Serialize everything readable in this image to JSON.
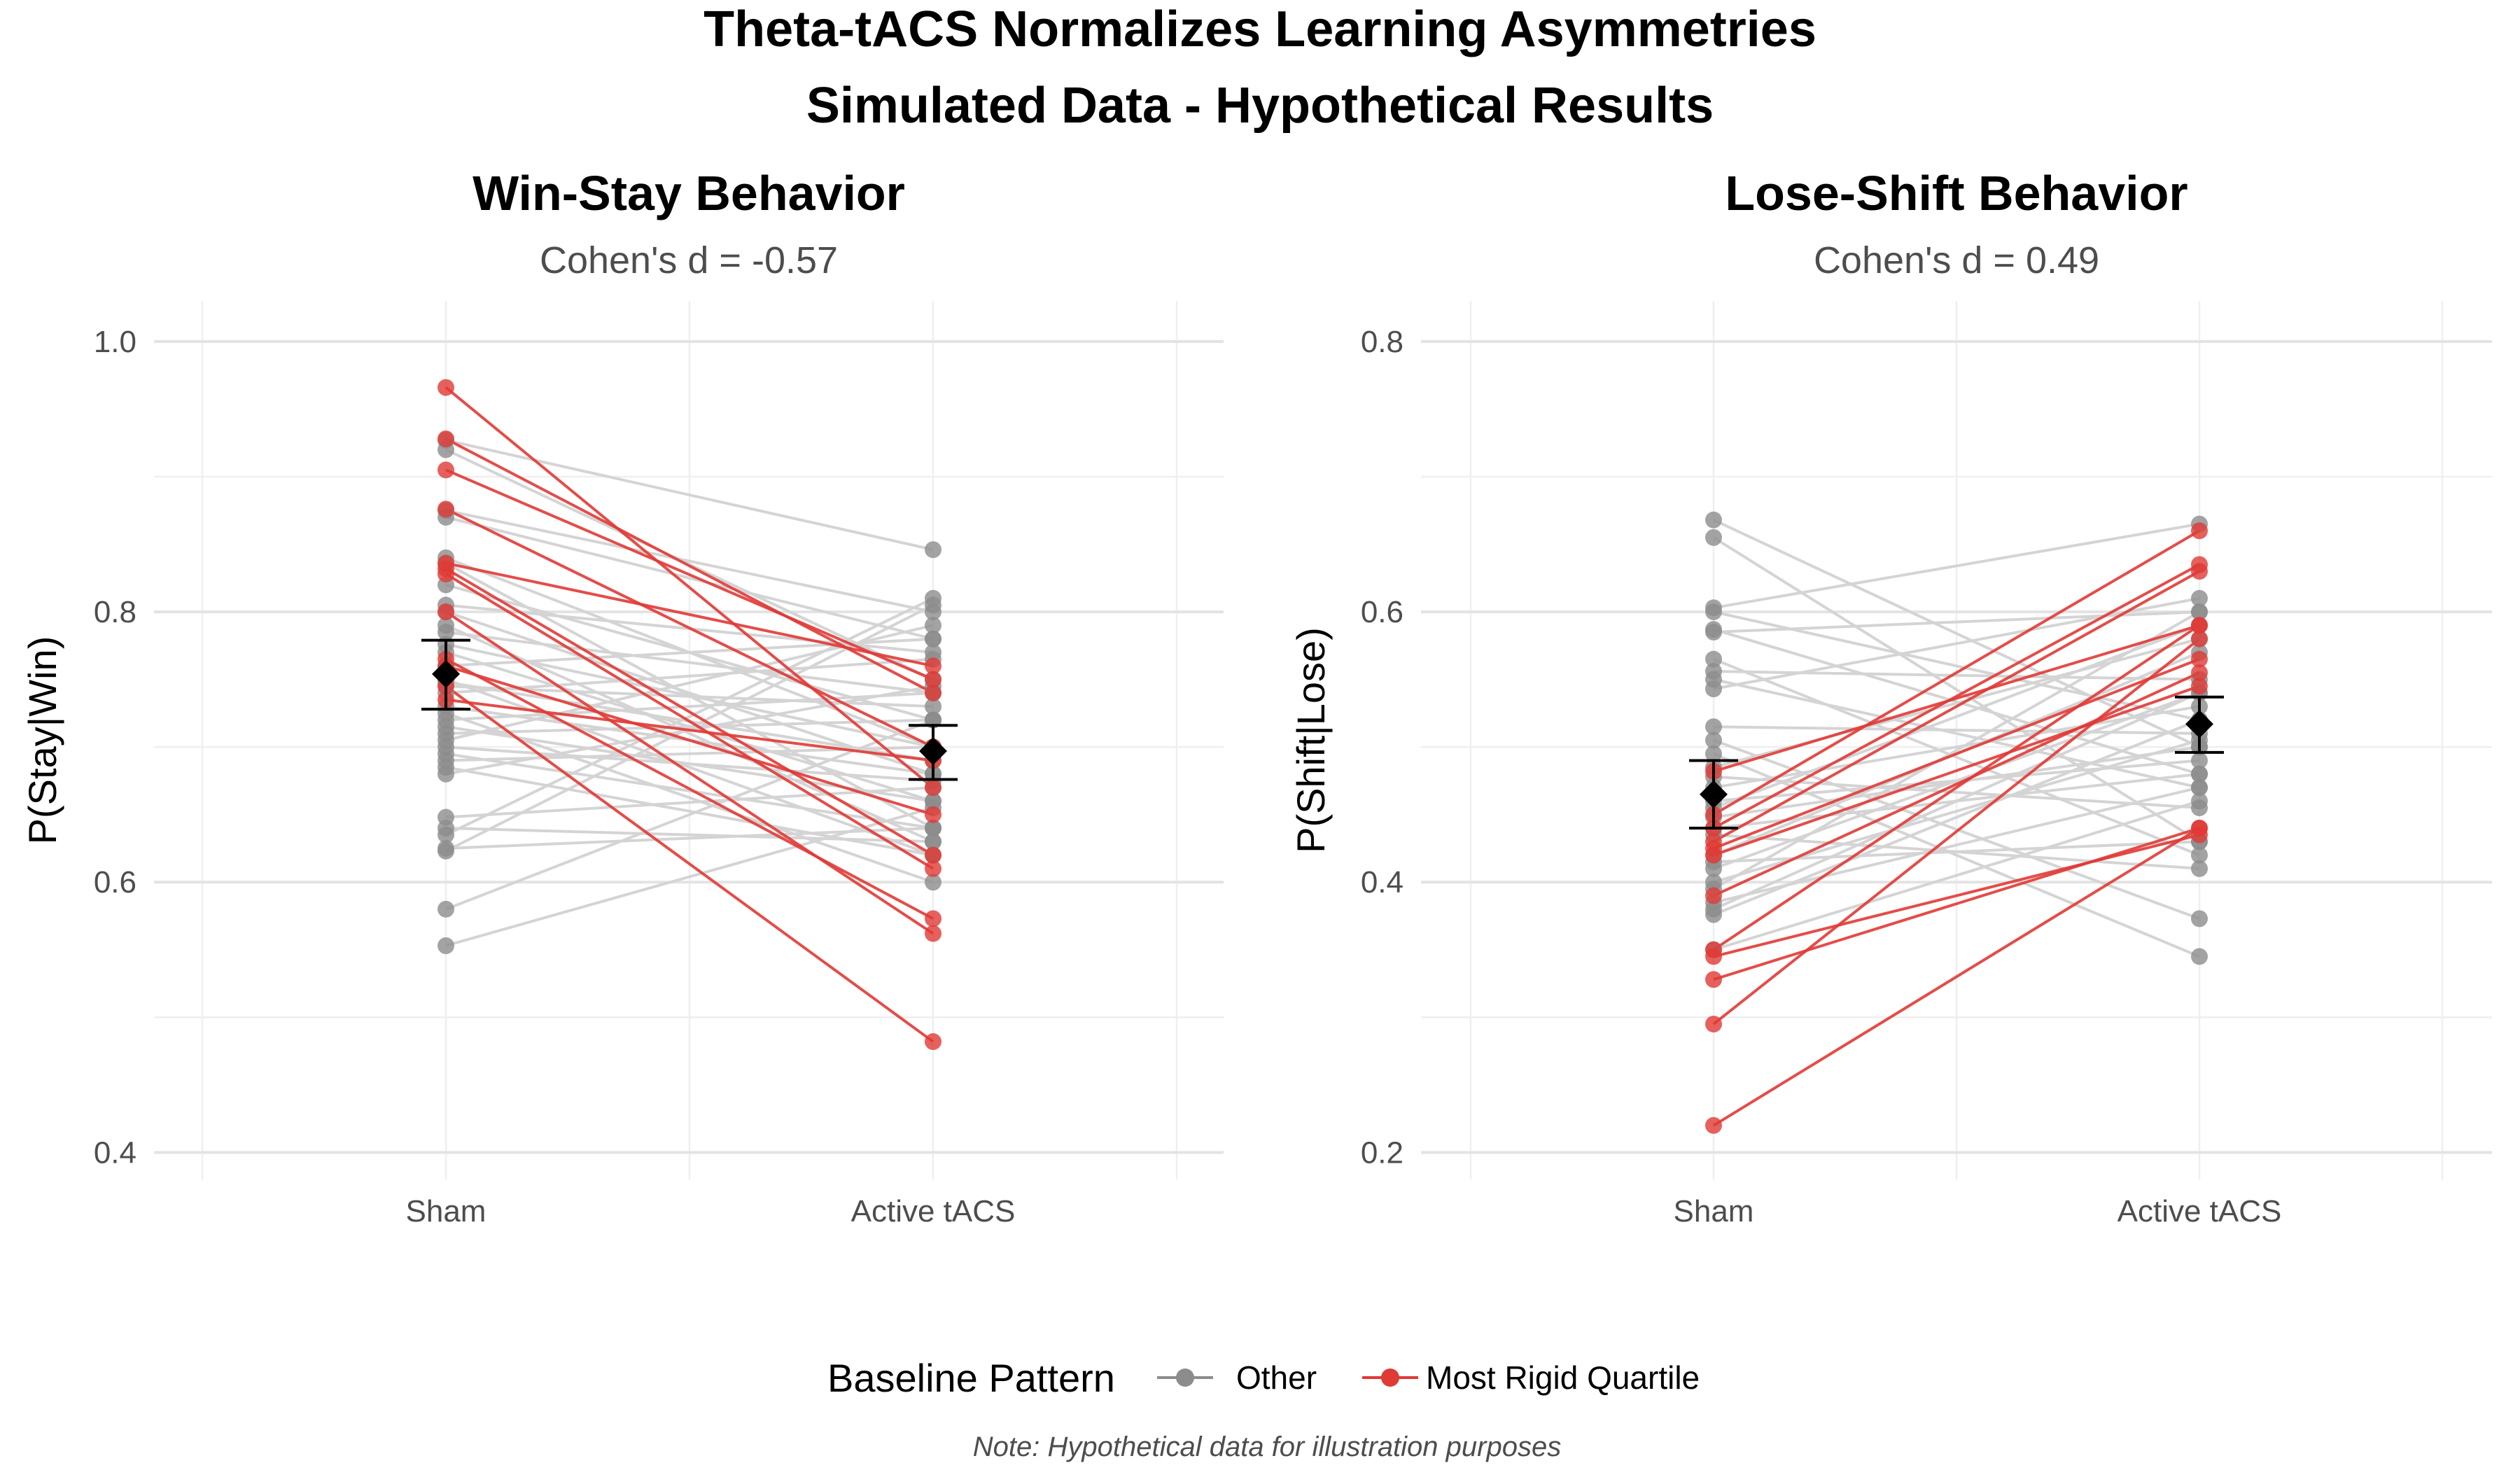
{
  "title_line1": "Theta-tACS Normalizes Learning Asymmetries",
  "title_line2": "Simulated Data - Hypothetical Results",
  "legend": {
    "title": "Baseline Pattern",
    "items": [
      {
        "label": "Other",
        "color": "#8c8c8c"
      },
      {
        "label": "Most Rigid Quartile",
        "color": "#e03a35"
      }
    ]
  },
  "caption": "Note: Hypothetical data for illustration purposes",
  "colors": {
    "other_line": "#d4d4d4",
    "other_point": "#8c8c8c",
    "rigid": "#e03a35",
    "summary": "#000000"
  },
  "chart_data": [
    {
      "type": "scatter",
      "title": "Win-Stay Behavior",
      "subtitle": "Cohen's d = -0.57",
      "xlabel": "",
      "ylabel": "P(Stay|Win)",
      "categories": [
        "Sham",
        "Active tACS"
      ],
      "ylim": [
        0.38,
        1.03
      ],
      "y_ticks": [
        0.4,
        0.6,
        0.8,
        1.0
      ],
      "y_tick_labels": [
        "0.4",
        "0.6",
        "0.8",
        "1.0"
      ],
      "grid": true,
      "summary": [
        {
          "category": "Sham",
          "mean": 0.754,
          "lower": 0.728,
          "upper": 0.779
        },
        {
          "category": "Active tACS",
          "mean": 0.697,
          "lower": 0.676,
          "upper": 0.716
        }
      ],
      "series": [
        {
          "group": "Other",
          "pairs": [
            [
              0.927,
              0.846
            ],
            [
              0.92,
              0.75
            ],
            [
              0.875,
              0.8
            ],
            [
              0.87,
              0.78
            ],
            [
              0.84,
              0.7
            ],
            [
              0.836,
              0.64
            ],
            [
              0.82,
              0.72
            ],
            [
              0.805,
              0.77
            ],
            [
              0.8,
              0.68
            ],
            [
              0.79,
              0.63
            ],
            [
              0.785,
              0.74
            ],
            [
              0.776,
              0.7
            ],
            [
              0.77,
              0.66
            ],
            [
              0.76,
              0.78
            ],
            [
              0.75,
              0.62
            ],
            [
              0.748,
              0.69
            ],
            [
              0.745,
              0.73
            ],
            [
              0.74,
              0.765
            ],
            [
              0.73,
              0.68
            ],
            [
              0.725,
              0.6
            ],
            [
              0.72,
              0.74
            ],
            [
              0.715,
              0.66
            ],
            [
              0.71,
              0.72
            ],
            [
              0.705,
              0.79
            ],
            [
              0.7,
              0.675
            ],
            [
              0.695,
              0.64
            ],
            [
              0.69,
              0.7
            ],
            [
              0.685,
              0.62
            ],
            [
              0.68,
              0.745
            ],
            [
              0.648,
              0.67
            ],
            [
              0.64,
              0.63
            ],
            [
              0.635,
              0.81
            ],
            [
              0.625,
              0.64
            ],
            [
              0.623,
              0.805
            ],
            [
              0.58,
              0.72
            ],
            [
              0.553,
              0.655
            ]
          ]
        },
        {
          "group": "Most Rigid Quartile",
          "pairs": [
            [
              0.966,
              0.67
            ],
            [
              0.928,
              0.74
            ],
            [
              0.905,
              0.75
            ],
            [
              0.876,
              0.7
            ],
            [
              0.836,
              0.76
            ],
            [
              0.832,
              0.62
            ],
            [
              0.828,
              0.61
            ],
            [
              0.8,
              0.562
            ],
            [
              0.765,
              0.573
            ],
            [
              0.76,
              0.65
            ],
            [
              0.745,
              0.482
            ],
            [
              0.735,
              0.69
            ]
          ]
        }
      ]
    },
    {
      "type": "scatter",
      "title": "Lose-Shift Behavior",
      "subtitle": "Cohen's d = 0.49",
      "xlabel": "",
      "ylabel": "P(Shift|Lose)",
      "categories": [
        "Sham",
        "Active tACS"
      ],
      "ylim": [
        0.18,
        0.83
      ],
      "y_ticks": [
        0.2,
        0.4,
        0.6,
        0.8
      ],
      "y_tick_labels": [
        "0.2",
        "0.4",
        "0.6",
        "0.8"
      ],
      "grid": true,
      "summary": [
        {
          "category": "Sham",
          "mean": 0.465,
          "lower": 0.44,
          "upper": 0.49
        },
        {
          "category": "Active tACS",
          "mean": 0.517,
          "lower": 0.496,
          "upper": 0.537
        }
      ],
      "series": [
        {
          "group": "Other",
          "pairs": [
            [
              0.668,
              0.5
            ],
            [
              0.655,
              0.43
            ],
            [
              0.603,
              0.665
            ],
            [
              0.6,
              0.52
            ],
            [
              0.587,
              0.48
            ],
            [
              0.585,
              0.6
            ],
            [
              0.565,
              0.42
            ],
            [
              0.556,
              0.55
            ],
            [
              0.55,
              0.47
            ],
            [
              0.543,
              0.61
            ],
            [
              0.515,
              0.51
            ],
            [
              0.505,
              0.373
            ],
            [
              0.495,
              0.345
            ],
            [
              0.485,
              0.58
            ],
            [
              0.478,
              0.455
            ],
            [
              0.47,
              0.53
            ],
            [
              0.46,
              0.49
            ],
            [
              0.455,
              0.59
            ],
            [
              0.448,
              0.5
            ],
            [
              0.44,
              0.48
            ],
            [
              0.435,
              0.41
            ],
            [
              0.42,
              0.57
            ],
            [
              0.415,
              0.43
            ],
            [
              0.41,
              0.54
            ],
            [
              0.4,
              0.505
            ],
            [
              0.395,
              0.6
            ],
            [
              0.385,
              0.47
            ],
            [
              0.38,
              0.54
            ],
            [
              0.376,
              0.52
            ],
            [
              0.35,
              0.46
            ]
          ]
        },
        {
          "group": "Most Rigid Quartile",
          "pairs": [
            [
              0.482,
              0.59
            ],
            [
              0.45,
              0.66
            ],
            [
              0.44,
              0.635
            ],
            [
              0.43,
              0.63
            ],
            [
              0.425,
              0.565
            ],
            [
              0.42,
              0.545
            ],
            [
              0.39,
              0.555
            ],
            [
              0.35,
              0.59
            ],
            [
              0.345,
              0.435
            ],
            [
              0.328,
              0.44
            ],
            [
              0.295,
              0.58
            ],
            [
              0.22,
              0.44
            ]
          ]
        }
      ]
    }
  ]
}
